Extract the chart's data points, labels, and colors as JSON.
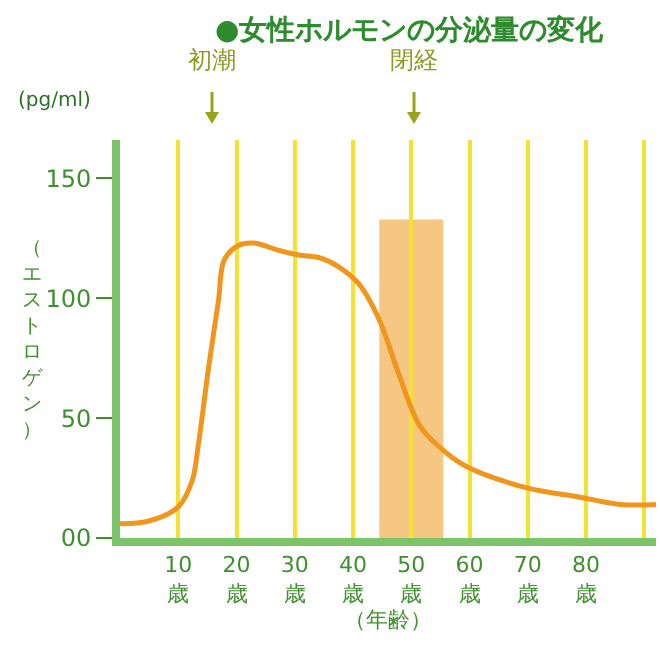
{
  "chart_data": {
    "type": "line",
    "title": "●女性ホルモンの分泌量の変化",
    "xlabel": "（年齢）",
    "ylabel": "（エストロゲン）",
    "annotations": [
      "(pg/ml)",
      "初潮",
      "閉経"
    ],
    "x": [
      0,
      4.8,
      10,
      12.4,
      13.4,
      15.2,
      16.9,
      17.9,
      20.3,
      23,
      27.2,
      30.7,
      34.1,
      37.6,
      41,
      44.5,
      47.9,
      51.4,
      54.8,
      59.3,
      69.7,
      79,
      85.9,
      92
    ],
    "series": [
      {
        "color": "#f0961e",
        "values": [
          6,
          7,
          13,
          24,
          38,
          71,
          99,
          116,
          122,
          123,
          120,
          118,
          117,
          113,
          106,
          91,
          68,
          47,
          38,
          30,
          21,
          17,
          14,
          14
        ]
      }
    ],
    "xlim": [
      0,
      92
    ],
    "ylim": [
      0,
      166
    ],
    "xticks": [
      {
        "value": 10,
        "label": "10歳"
      },
      {
        "value": 20,
        "label": "20歳"
      },
      {
        "value": 30,
        "label": "30歳"
      },
      {
        "value": 40,
        "label": "40歳"
      },
      {
        "value": 50,
        "label": "50歳"
      },
      {
        "value": 60,
        "label": "60歳"
      },
      {
        "value": 70,
        "label": "70歳"
      },
      {
        "value": 80,
        "label": "80歳"
      },
      {
        "value": 90,
        "label": null
      }
    ],
    "yticks": [
      {
        "value": 0,
        "label": "00"
      },
      50,
      100,
      150
    ],
    "bands": [
      {
        "axis": "x",
        "from": 44.5,
        "to": 55.5,
        "color": "#f0a030"
      }
    ],
    "grid": "x",
    "marker": "none",
    "line_style": "solid",
    "legend": false
  }
}
